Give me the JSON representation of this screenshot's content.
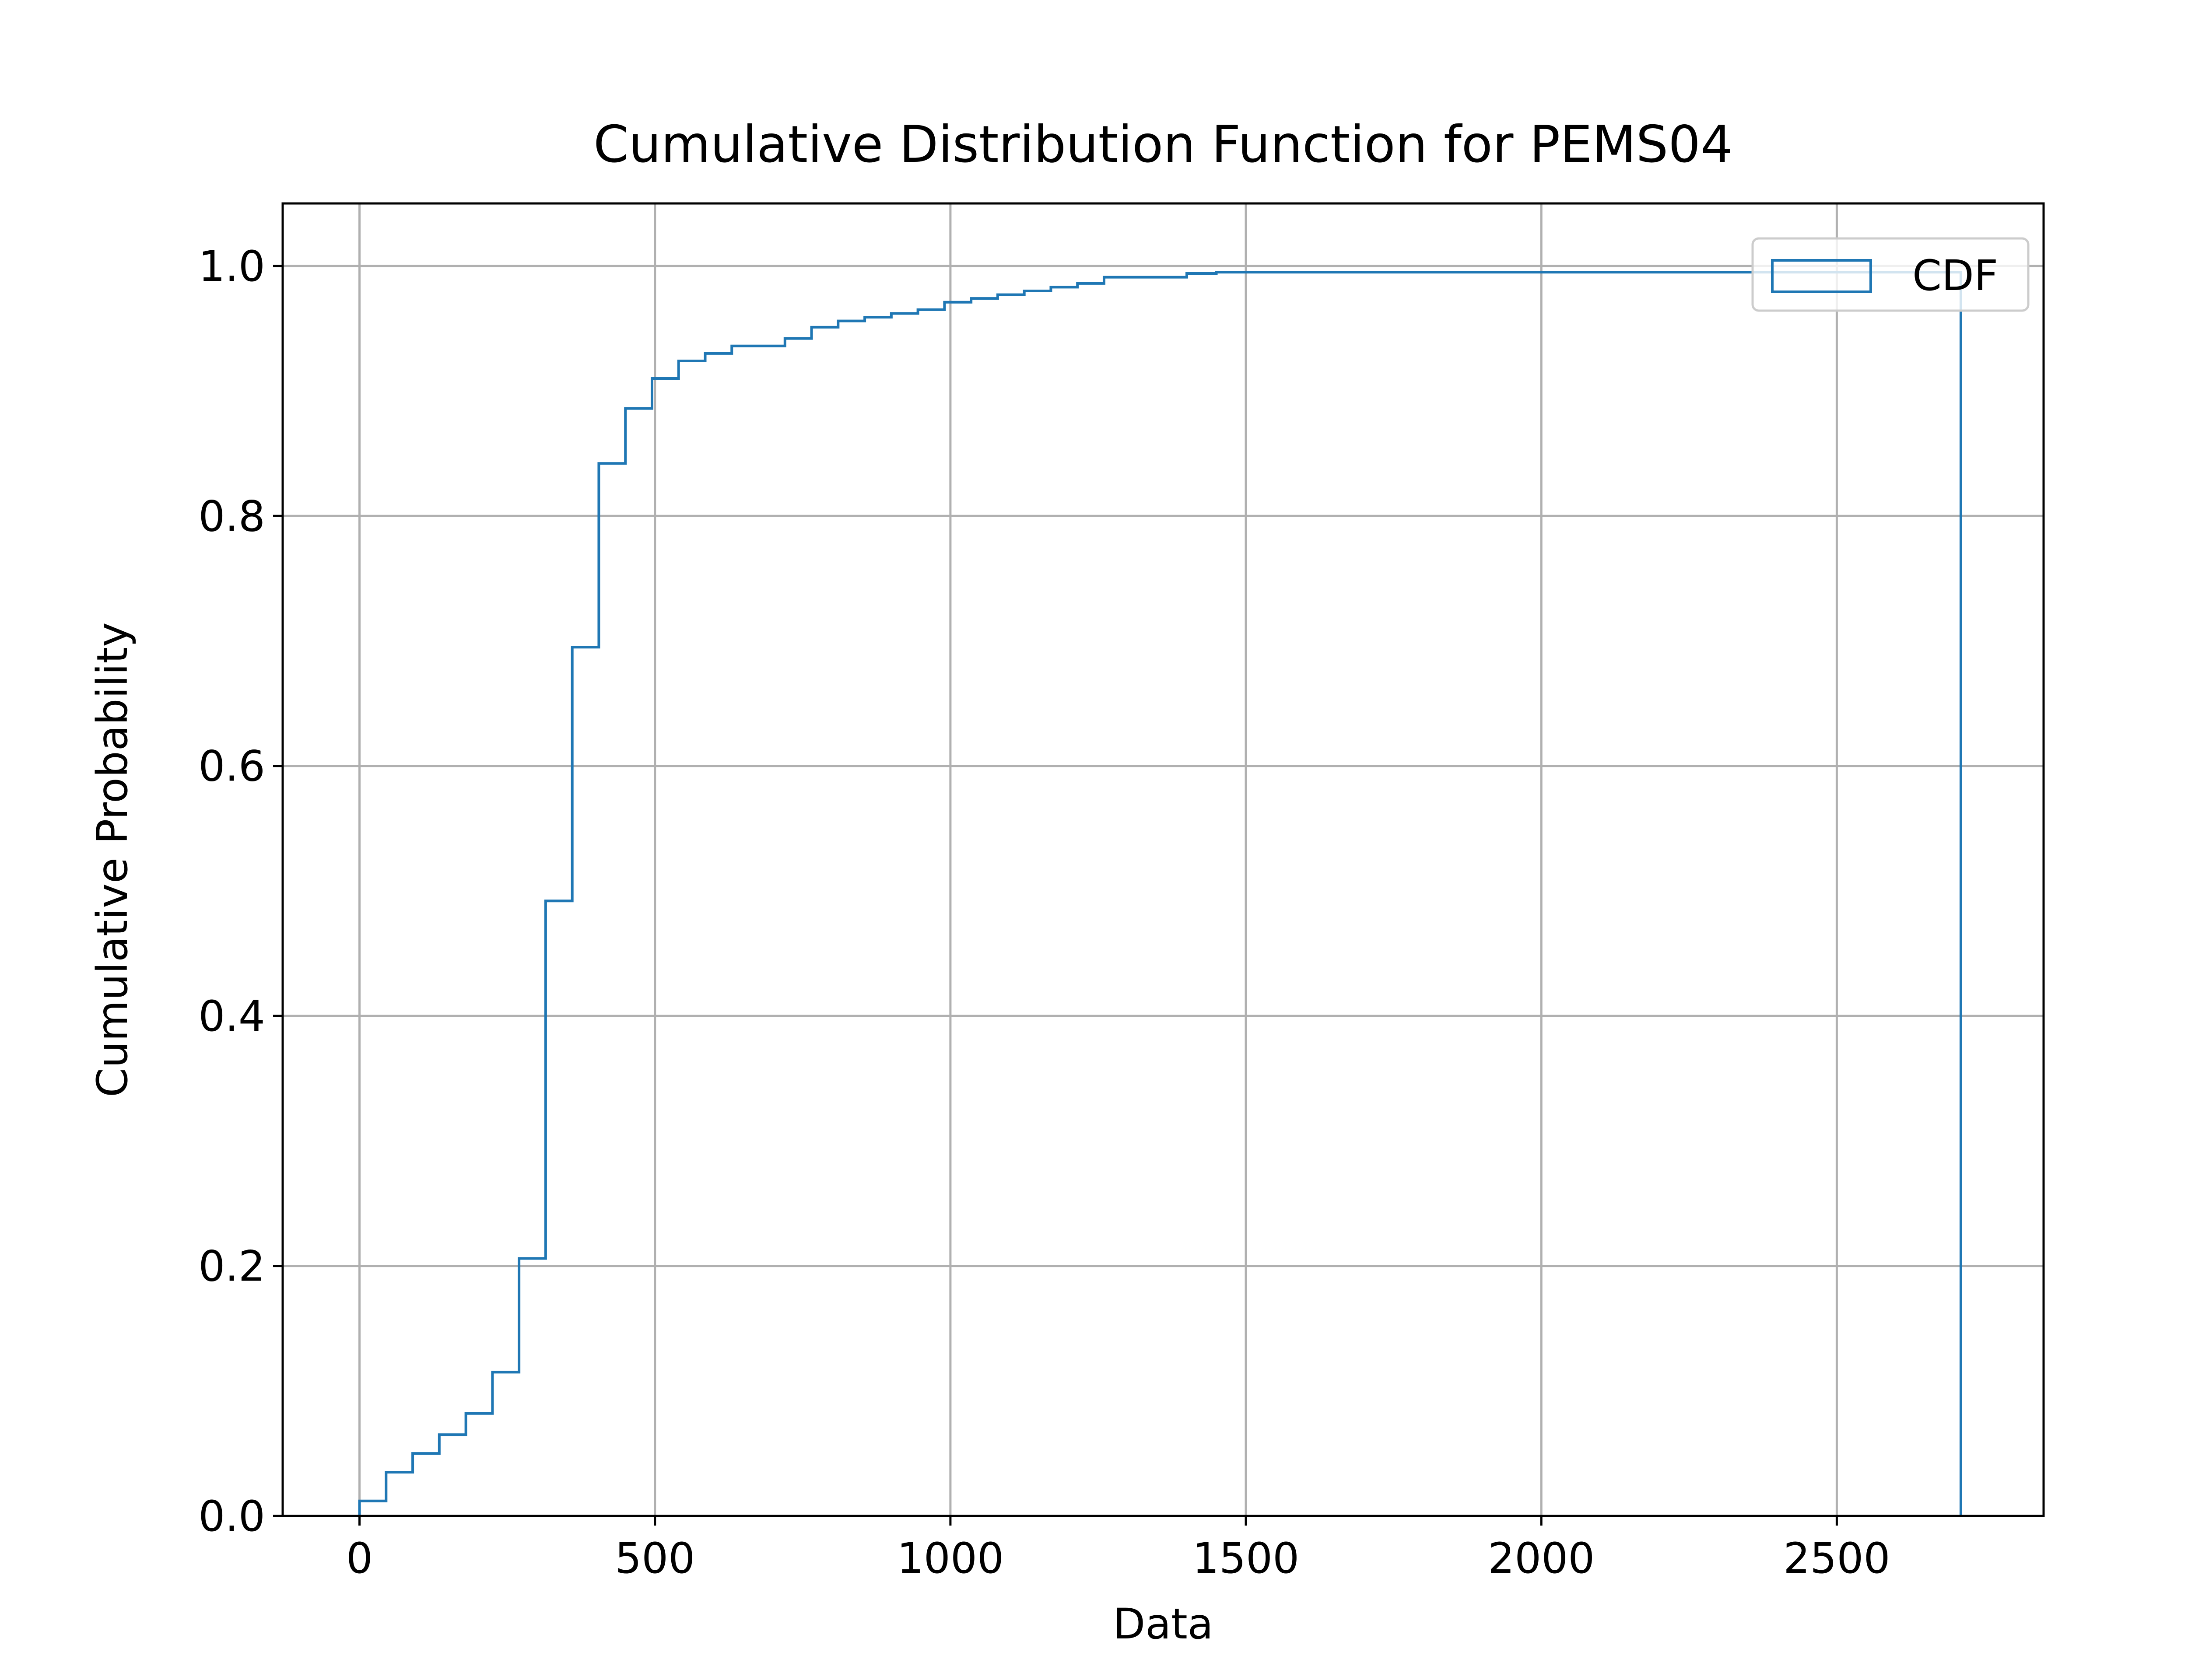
{
  "chart_data": {
    "type": "line",
    "title": "Cumulative Distribution Function for PEMS04",
    "xlabel": "Data",
    "ylabel": "Cumulative Probability",
    "xlim": [
      -130,
      2850
    ],
    "ylim": [
      0.0,
      1.05
    ],
    "xticks": [
      0,
      500,
      1000,
      1500,
      2000,
      2500
    ],
    "xtick_labels": [
      "0",
      "500",
      "1000",
      "1500",
      "2000",
      "2500"
    ],
    "yticks": [
      0.0,
      0.2,
      0.4,
      0.6,
      0.8,
      1.0
    ],
    "ytick_labels": [
      "0.0",
      "0.2",
      "0.4",
      "0.6",
      "0.8",
      "1.0"
    ],
    "grid": true,
    "legend_position": "top-right",
    "series": [
      {
        "name": "CDF",
        "style": "step",
        "bin_edges": [
          0,
          45,
          90,
          135,
          180,
          225,
          270,
          315,
          360,
          405,
          450,
          495,
          540,
          585,
          630,
          675,
          720,
          765,
          810,
          855,
          900,
          945,
          990,
          1035,
          1080,
          1125,
          1170,
          1215,
          1260,
          1305,
          1350,
          1400,
          1450,
          2710
        ],
        "values": [
          0.012,
          0.035,
          0.05,
          0.065,
          0.082,
          0.115,
          0.206,
          0.492,
          0.695,
          0.842,
          0.886,
          0.91,
          0.924,
          0.93,
          0.936,
          0.936,
          0.942,
          0.951,
          0.956,
          0.959,
          0.962,
          0.965,
          0.971,
          0.974,
          0.977,
          0.98,
          0.983,
          0.986,
          0.991,
          0.991,
          0.991,
          0.994,
          0.995
        ]
      }
    ],
    "colors": {
      "line": "#1f77b4",
      "grid": "#b0b0b0",
      "axes": "#000000",
      "legend_border": "#cccccc"
    }
  }
}
